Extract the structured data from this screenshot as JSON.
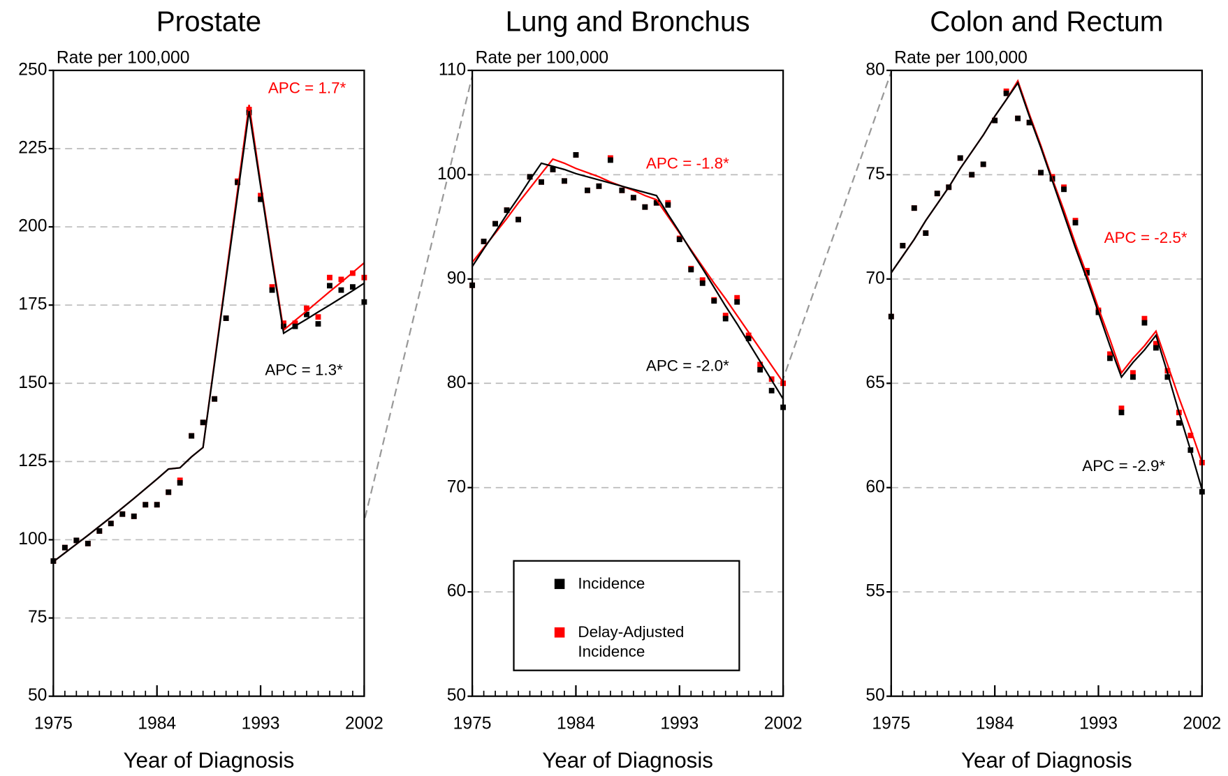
{
  "chart_data": [
    {
      "type": "line",
      "title": "Prostate",
      "y_label": "Rate per 100,000",
      "x_label": "Year of Diagnosis",
      "x": [
        1975,
        1976,
        1977,
        1978,
        1979,
        1980,
        1981,
        1982,
        1983,
        1984,
        1985,
        1986,
        1987,
        1988,
        1989,
        1990,
        1991,
        1992,
        1993,
        1994,
        1995,
        1996,
        1997,
        1998,
        1999,
        2000,
        2001,
        2002
      ],
      "xlim": [
        1975,
        2002
      ],
      "xticks": [
        1975,
        1984,
        1993,
        2002
      ],
      "ylim": [
        50,
        250
      ],
      "yticks": [
        50,
        75,
        100,
        125,
        150,
        175,
        200,
        225,
        250
      ],
      "grid": true,
      "series": [
        {
          "name": "Incidence",
          "color": "#000000",
          "values": [
            93.2,
            97.5,
            99.8,
            98.8,
            102.8,
            105.2,
            108.2,
            107.5,
            111.2,
            111.2,
            115.2,
            118.2,
            133.2,
            137.5,
            145,
            170.8,
            214.2,
            236.5,
            208.8,
            179.8,
            168.2,
            168.2,
            172,
            169,
            181.2,
            179.8,
            180.8,
            176
          ],
          "fit": [
            93,
            95.8,
            98.6,
            101.4,
            104.3,
            107.2,
            110.2,
            113.2,
            116.3,
            119.4,
            122.6,
            123,
            126.5,
            129.5,
            156.4,
            183.3,
            210.1,
            237,
            213,
            189,
            166,
            168.3,
            170.5,
            172.8,
            175,
            177.3,
            179.6,
            182
          ]
        },
        {
          "name": "Delay-Adjusted Incidence",
          "color": "#ff0000",
          "values": [
            93.2,
            97.5,
            99.8,
            98.8,
            102.8,
            105.2,
            108.2,
            107.5,
            111.2,
            111.2,
            115.2,
            119,
            133.2,
            137.5,
            145,
            170.8,
            214.6,
            237.5,
            210,
            180.8,
            169.2,
            169.2,
            174,
            171.2,
            183.8,
            183.2,
            185.2,
            183.8
          ],
          "fit": [
            93,
            95.8,
            98.6,
            101.4,
            104.3,
            107.2,
            110.2,
            113.2,
            116.3,
            119.4,
            122.6,
            123,
            126.5,
            129.5,
            156.9,
            184.3,
            211.6,
            239,
            214,
            190,
            167,
            170.1,
            173.1,
            176.2,
            179.3,
            182.3,
            185.4,
            188.5
          ]
        }
      ],
      "annotations": [
        {
          "text": "APC = 1.7*",
          "color": "#ff0000"
        },
        {
          "text": "APC = 1.3*",
          "color": "#000000"
        }
      ]
    },
    {
      "type": "line",
      "title": "Lung and Bronchus",
      "y_label": "Rate per 100,000",
      "x_label": "Year of Diagnosis",
      "x": [
        1975,
        1976,
        1977,
        1978,
        1979,
        1980,
        1981,
        1982,
        1983,
        1984,
        1985,
        1986,
        1987,
        1988,
        1989,
        1990,
        1991,
        1992,
        1993,
        1994,
        1995,
        1996,
        1997,
        1998,
        1999,
        2000,
        2001,
        2002
      ],
      "xlim": [
        1975,
        2002
      ],
      "xticks": [
        1975,
        1984,
        1993,
        2002
      ],
      "ylim": [
        50,
        110
      ],
      "yticks": [
        50,
        60,
        70,
        80,
        90,
        100,
        110
      ],
      "grid": true,
      "legend": "lower center",
      "series": [
        {
          "name": "Incidence",
          "color": "#000000",
          "values": [
            89.4,
            93.6,
            95.3,
            96.6,
            95.7,
            99.8,
            99.3,
            100.5,
            99.4,
            101.9,
            98.5,
            98.9,
            101.4,
            98.5,
            97.8,
            96.9,
            97.3,
            97.1,
            93.8,
            90.9,
            89.6,
            87.9,
            86.2,
            87.8,
            84.3,
            81.3,
            79.3,
            77.7
          ],
          "fit": [
            91.2,
            92.9,
            94.5,
            96.2,
            97.8,
            99.5,
            101.1,
            100.8,
            100.5,
            100.1,
            99.8,
            99.5,
            99.2,
            98.9,
            98.6,
            98.3,
            98,
            96.2,
            94.5,
            92.7,
            91,
            89.2,
            87.4,
            85.7,
            83.9,
            82.1,
            80.3,
            78.5
          ]
        },
        {
          "name": "Delay-Adjusted Incidence",
          "color": "#ff0000",
          "values": [
            89.4,
            93.6,
            95.3,
            96.6,
            95.7,
            99.8,
            99.3,
            100.5,
            99.4,
            101.9,
            98.5,
            98.9,
            101.6,
            98.5,
            97.8,
            96.9,
            97.3,
            97.3,
            93.9,
            91,
            89.9,
            88,
            86.5,
            88.2,
            84.6,
            81.8,
            80.4,
            80
          ],
          "fit": [
            91.6,
            93,
            94.4,
            95.8,
            97.3,
            98.7,
            100.1,
            101.5,
            101.1,
            100.6,
            100.2,
            99.8,
            99.3,
            98.9,
            98.5,
            98,
            97.6,
            96,
            94.4,
            92.8,
            91.2,
            89.6,
            88.1,
            86.5,
            84.9,
            83.3,
            81.7,
            80.1
          ]
        }
      ],
      "annotations": [
        {
          "text": "APC = -1.8*",
          "color": "#ff0000"
        },
        {
          "text": "APC = -2.0*",
          "color": "#000000"
        }
      ]
    },
    {
      "type": "line",
      "title": "Colon and Rectum",
      "y_label": "Rate per 100,000",
      "x_label": "Year of Diagnosis",
      "x": [
        1975,
        1976,
        1977,
        1978,
        1979,
        1980,
        1981,
        1982,
        1983,
        1984,
        1985,
        1986,
        1987,
        1988,
        1989,
        1990,
        1991,
        1992,
        1993,
        1994,
        1995,
        1996,
        1997,
        1998,
        1999,
        2000,
        2001,
        2002
      ],
      "xlim": [
        1975,
        2002
      ],
      "xticks": [
        1975,
        1984,
        1993,
        2002
      ],
      "ylim": [
        50,
        80
      ],
      "yticks": [
        50,
        55,
        60,
        65,
        70,
        75,
        80
      ],
      "grid": true,
      "series": [
        {
          "name": "Incidence",
          "color": "#000000",
          "values": [
            68.2,
            71.6,
            73.4,
            72.2,
            74.1,
            74.4,
            75.8,
            75,
            75.5,
            77.6,
            78.9,
            77.7,
            77.5,
            75.1,
            74.8,
            74.3,
            72.7,
            70.3,
            68.4,
            66.2,
            63.6,
            65.3,
            67.9,
            66.7,
            65.3,
            63.1,
            61.8,
            59.8
          ],
          "fit": [
            70.3,
            71.1,
            71.9,
            72.8,
            73.6,
            74.4,
            75.3,
            76.1,
            76.9,
            77.8,
            78.6,
            79.4,
            77.8,
            76.3,
            74.7,
            73.1,
            71.5,
            70,
            68.4,
            66.8,
            65.3,
            66,
            66.6,
            67.3,
            65.5,
            63.6,
            61.8,
            59.9
          ]
        },
        {
          "name": "Delay-Adjusted Incidence",
          "color": "#ff0000",
          "values": [
            68.2,
            71.6,
            73.4,
            72.2,
            74.1,
            74.4,
            75.8,
            75,
            75.5,
            77.6,
            79,
            77.7,
            77.5,
            75.1,
            74.9,
            74.4,
            72.8,
            70.4,
            68.5,
            66.4,
            63.8,
            65.5,
            68.1,
            66.9,
            65.6,
            63.6,
            62.5,
            61.2
          ],
          "fit": [
            70.3,
            71.1,
            71.9,
            72.8,
            73.6,
            74.4,
            75.3,
            76.1,
            76.9,
            77.8,
            78.6,
            79.5,
            77.9,
            76.4,
            74.8,
            73.3,
            71.7,
            70.2,
            68.6,
            67.1,
            65.5,
            66.2,
            66.8,
            67.5,
            65.9,
            64.3,
            62.8,
            61.2
          ]
        }
      ],
      "annotations": [
        {
          "text": "APC = -2.5*",
          "color": "#ff0000"
        },
        {
          "text": "APC = -2.9*",
          "color": "#000000"
        }
      ]
    }
  ]
}
